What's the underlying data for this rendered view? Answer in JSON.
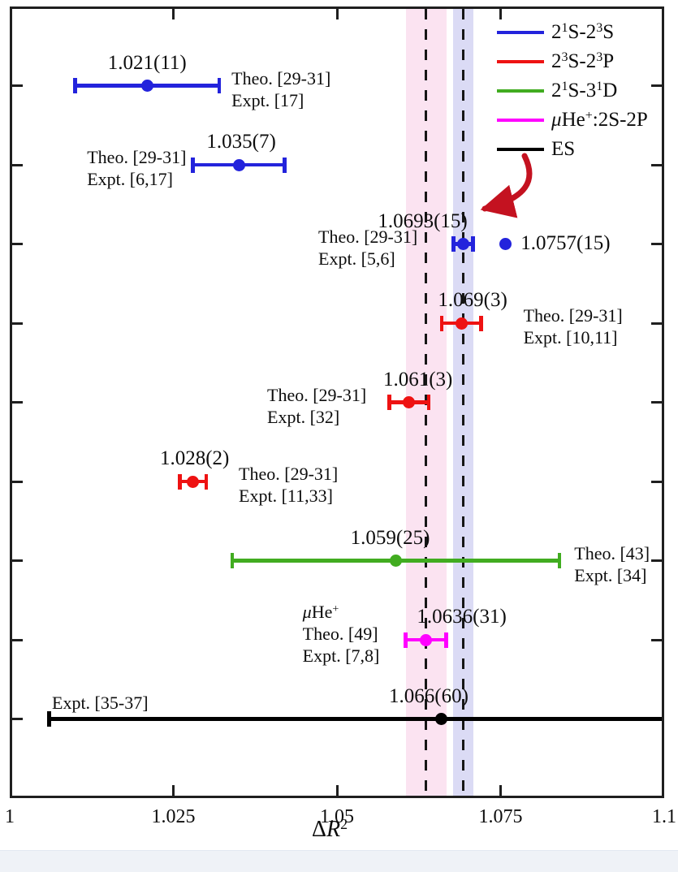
{
  "chart_data": {
    "type": "scatter",
    "title": "",
    "xlabel": {
      "delta": "Δ",
      "symbol": "R",
      "exponent": "2"
    },
    "x_axis": {
      "min": 1.0,
      "max": 1.1,
      "grid": false,
      "tick_labels": [
        {
          "value": 1.0,
          "label": "1"
        },
        {
          "value": 1.025,
          "label": "1.025"
        },
        {
          "value": 1.05,
          "label": "1.05"
        },
        {
          "value": 1.075,
          "label": "1.075"
        },
        {
          "value": 1.1,
          "label": "1.1"
        }
      ],
      "tick_marks": [
        1.025,
        1.05,
        1.075
      ]
    },
    "legend": {
      "position": "top-right",
      "items": [
        {
          "name": "2S-2S",
          "color": "#2323DC",
          "segments": [
            {
              "t": "2"
            },
            {
              "t": "1",
              "sup": true
            },
            {
              "t": "S-2"
            },
            {
              "t": "3",
              "sup": true
            },
            {
              "t": "S"
            }
          ]
        },
        {
          "name": "2S-2P",
          "color": "#EE1212",
          "segments": [
            {
              "t": "2"
            },
            {
              "t": "3",
              "sup": true
            },
            {
              "t": "S-2"
            },
            {
              "t": "3",
              "sup": true
            },
            {
              "t": "P"
            }
          ]
        },
        {
          "name": "2S-3D",
          "color": "#41AC20",
          "segments": [
            {
              "t": "2"
            },
            {
              "t": "1",
              "sup": true
            },
            {
              "t": "S-3"
            },
            {
              "t": "1",
              "sup": true
            },
            {
              "t": "D"
            }
          ]
        },
        {
          "name": "muHe-2S-2P",
          "color": "#FF00FF",
          "segments": [
            {
              "t": "μ",
              "i": true
            },
            {
              "t": "He"
            },
            {
              "t": "+",
              "sup": true
            },
            {
              "t": ":2S-2P"
            }
          ]
        },
        {
          "name": "ES",
          "color": "#000000",
          "segments": [
            {
              "t": "ES"
            }
          ]
        }
      ]
    },
    "bands": [
      {
        "name": "pink-band",
        "center": 1.0636,
        "half_width": 0.0031,
        "color": "#FBE3F1"
      },
      {
        "name": "lavender-band",
        "center": 1.0693,
        "half_width": 0.0015,
        "color": "#DBDBF5"
      }
    ],
    "dashed_lines": [
      1.0636,
      1.0693
    ],
    "points": [
      {
        "series": "2S-2S",
        "color": "#2323DC",
        "value": 1.021,
        "error": 0.011,
        "value_label": "1.021(11)",
        "label_dx": 0,
        "side": "right",
        "side_gap": 13,
        "side_lines": [
          "Theo. [29-31]",
          "Expt. [17]"
        ]
      },
      {
        "series": "2S-2S",
        "color": "#2323DC",
        "value": 1.035,
        "error": 0.007,
        "value_label": "1.035(7)",
        "label_dx": 3,
        "side": "left",
        "side_gap": 6,
        "side_lines": [
          "Theo. [29-31]",
          "Expt. [6,17]"
        ]
      },
      {
        "series": "2S-2S",
        "color": "#2323DC",
        "value": 1.0693,
        "error": 0.0015,
        "value_label": "1.0693(15)",
        "label_dx": -50,
        "side": "left",
        "side_gap": 42,
        "side_lines": [
          "Theo. [29-31]",
          "Expt. [5,6]"
        ],
        "extra_point": {
          "value": 1.0757,
          "error": 0.0015,
          "style": "dotted",
          "label": "1.0757(15)"
        }
      },
      {
        "series": "2S-2P",
        "color": "#EE1212",
        "value": 1.069,
        "error": 0.003,
        "value_label": "1.069(3)",
        "label_dx": 14,
        "side": "right",
        "side_gap": 50,
        "side_lines": [
          "Theo. [29-31]",
          "Expt. [10,11]"
        ]
      },
      {
        "series": "2S-2P",
        "color": "#EE1212",
        "value": 1.061,
        "error": 0.003,
        "value_label": "1.061(3)",
        "label_dx": 11,
        "side": "left",
        "side_gap": 26,
        "side_lines": [
          "Theo. [29-31]",
          "Expt. [32]"
        ]
      },
      {
        "series": "2S-2P",
        "color": "#EE1212",
        "value": 1.028,
        "error": 0.002,
        "value_label": "1.028(2)",
        "label_dx": 2,
        "side": "right",
        "side_gap": 38,
        "side_lines": [
          "Theo. [29-31]",
          "Expt. [11,33]"
        ]
      },
      {
        "series": "2S-3D",
        "color": "#41AC20",
        "value": 1.059,
        "error": 0.025,
        "value_label": "1.059(25)",
        "label_dx": -7,
        "side": "right",
        "side_gap": 16,
        "side_lines": [
          "Theo. [43]",
          "Expt. [34]"
        ]
      },
      {
        "series": "muHe-2S-2P",
        "color": "#FF00FF",
        "value": 1.0636,
        "error": 0.0031,
        "value_label": "1.0636(31)",
        "label_dx": 44,
        "side": "left",
        "side_gap": 30,
        "side_lines": [
          [
            {
              "t": "μ",
              "i": true
            },
            {
              "t": "He"
            },
            {
              "t": "+",
              "sup": true
            }
          ],
          "Theo. [49]",
          "Expt. [7,8]"
        ]
      },
      {
        "series": "ES",
        "color": "#000000",
        "value": 1.066,
        "error": 0.06,
        "value_label": "1.066(60)",
        "label_dx": -16,
        "side": "above-left",
        "side_gap": 0,
        "side_lines": [
          "Expt. [35-37]"
        ]
      }
    ],
    "annotation_arrow": {
      "color": "#C41220",
      "points_to_value": 1.0693
    }
  }
}
